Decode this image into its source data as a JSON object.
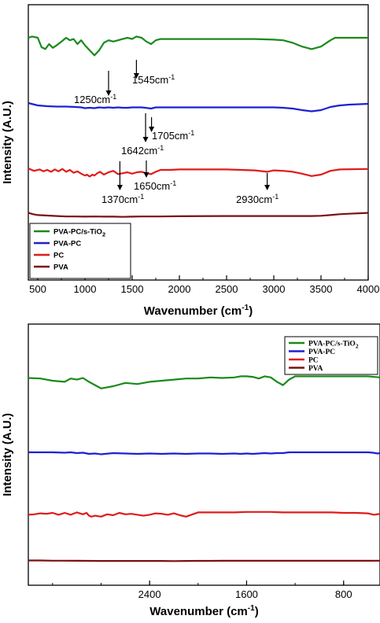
{
  "chart_data": [
    {
      "type": "line",
      "title": "",
      "xlabel": "Wavenumber (cm",
      "xlabel_sup": "-1",
      "xlabel_end": ")",
      "ylabel": "Intensity (A.U.)",
      "xlim": [
        400,
        4000
      ],
      "xticks": [
        500,
        1000,
        1500,
        2000,
        2500,
        3000,
        3500,
        4000
      ],
      "legend_position": "bottom-left",
      "legend": [
        {
          "name": "PVA-PC/s-TiO",
          "sub": "2",
          "color": "#1a8a1a"
        },
        {
          "name": "PVA-PC",
          "sub": "",
          "color": "#1f1fd6"
        },
        {
          "name": "PC",
          "sub": "",
          "color": "#e01b1b"
        },
        {
          "name": "PVA",
          "sub": "",
          "color": "#7a1010"
        }
      ],
      "annotations": [
        {
          "text": "1250cm",
          "sup": "-1",
          "x": 1250
        },
        {
          "text": "1545cm",
          "sup": "-1",
          "x": 1545
        },
        {
          "text": "1705cm",
          "sup": "-1",
          "x": 1705
        },
        {
          "text": "1642cm",
          "sup": "-1",
          "x": 1642
        },
        {
          "text": "1370cm",
          "sup": "-1",
          "x": 1370
        },
        {
          "text": "1650cm",
          "sup": "-1",
          "x": 1650
        },
        {
          "text": "2930cm",
          "sup": "-1",
          "x": 2930
        }
      ],
      "series": [
        {
          "name": "PVA-PC/s-TiO2",
          "color": "#1a8a1a",
          "x": [
            400,
            440,
            500,
            540,
            580,
            620,
            660,
            700,
            760,
            800,
            840,
            880,
            920,
            960,
            1000,
            1050,
            1100,
            1150,
            1200,
            1250,
            1300,
            1350,
            1400,
            1450,
            1500,
            1545,
            1600,
            1650,
            1700,
            1750,
            1800,
            1900,
            2000,
            2200,
            2500,
            2800,
            3000,
            3100,
            3200,
            3300,
            3400,
            3500,
            3600,
            3650,
            3700,
            3800,
            4000
          ],
          "y": [
            0.9,
            0.92,
            0.9,
            0.75,
            0.72,
            0.8,
            0.74,
            0.78,
            0.85,
            0.9,
            0.86,
            0.88,
            0.8,
            0.86,
            0.78,
            0.7,
            0.62,
            0.7,
            0.82,
            0.86,
            0.84,
            0.86,
            0.88,
            0.9,
            0.88,
            0.92,
            0.9,
            0.84,
            0.8,
            0.86,
            0.88,
            0.88,
            0.88,
            0.88,
            0.88,
            0.88,
            0.87,
            0.86,
            0.82,
            0.76,
            0.72,
            0.76,
            0.86,
            0.9,
            0.9,
            0.9,
            0.9
          ]
        },
        {
          "name": "PVA-PC",
          "color": "#1f1fd6",
          "x": [
            400,
            500,
            600,
            700,
            800,
            900,
            960,
            1000,
            1050,
            1100,
            1150,
            1200,
            1250,
            1300,
            1350,
            1400,
            1450,
            1500,
            1600,
            1640,
            1700,
            1750,
            1800,
            1900,
            2000,
            2200,
            2500,
            2800,
            3000,
            3100,
            3200,
            3300,
            3400,
            3500,
            3600,
            3700,
            3800,
            3900,
            4000
          ],
          "y": [
            0.68,
            0.62,
            0.6,
            0.59,
            0.59,
            0.58,
            0.57,
            0.55,
            0.56,
            0.55,
            0.57,
            0.56,
            0.57,
            0.56,
            0.57,
            0.56,
            0.56,
            0.57,
            0.57,
            0.56,
            0.54,
            0.57,
            0.57,
            0.57,
            0.57,
            0.57,
            0.57,
            0.57,
            0.57,
            0.56,
            0.54,
            0.5,
            0.47,
            0.5,
            0.58,
            0.62,
            0.64,
            0.65,
            0.66
          ]
        },
        {
          "name": "PC",
          "color": "#e01b1b",
          "x": [
            400,
            460,
            520,
            560,
            600,
            640,
            680,
            720,
            760,
            800,
            840,
            880,
            920,
            960,
            1000,
            1020,
            1050,
            1080,
            1100,
            1130,
            1160,
            1200,
            1250,
            1300,
            1350,
            1400,
            1450,
            1500,
            1550,
            1600,
            1650,
            1700,
            1750,
            1800,
            1900,
            2000,
            2200,
            2500,
            2800,
            2930,
            3000,
            3100,
            3200,
            3300,
            3400,
            3500,
            3600,
            3700,
            4000
          ],
          "y": [
            0.43,
            0.38,
            0.41,
            0.37,
            0.4,
            0.36,
            0.41,
            0.37,
            0.42,
            0.36,
            0.4,
            0.34,
            0.37,
            0.32,
            0.28,
            0.3,
            0.26,
            0.3,
            0.28,
            0.33,
            0.36,
            0.3,
            0.35,
            0.38,
            0.31,
            0.33,
            0.35,
            0.32,
            0.35,
            0.36,
            0.33,
            0.31,
            0.36,
            0.4,
            0.4,
            0.41,
            0.41,
            0.41,
            0.39,
            0.36,
            0.39,
            0.38,
            0.36,
            0.32,
            0.27,
            0.3,
            0.38,
            0.41,
            0.42
          ]
        },
        {
          "name": "PVA",
          "color": "#7a1010",
          "x": [
            400,
            450,
            500,
            600,
            700,
            800,
            900,
            1000,
            1100,
            1200,
            1300,
            1400,
            1500,
            1600,
            1700,
            1800,
            2000,
            2500,
            3000,
            3200,
            3300,
            3400,
            3500,
            3600,
            3700,
            3800,
            4000
          ],
          "y": [
            0.2,
            0.17,
            0.15,
            0.14,
            0.13,
            0.12,
            0.12,
            0.115,
            0.12,
            0.115,
            0.115,
            0.11,
            0.115,
            0.12,
            0.12,
            0.12,
            0.125,
            0.13,
            0.13,
            0.13,
            0.13,
            0.13,
            0.135,
            0.15,
            0.17,
            0.18,
            0.2
          ]
        }
      ]
    },
    {
      "type": "line",
      "title": "",
      "xlabel": "Wavenumber (cm",
      "xlabel_sup": "-1",
      "xlabel_end": ")",
      "ylabel": "Intensity (A.U.)",
      "xlim": [
        500,
        3400
      ],
      "xticks": [
        800,
        1600,
        2400
      ],
      "x_reversed": true,
      "legend_position": "top-right",
      "legend": [
        {
          "name": "PVA-PC/s-TiO",
          "sub": "2",
          "color": "#1a8a1a"
        },
        {
          "name": "PVA-PC",
          "sub": "",
          "color": "#1f1fd6"
        },
        {
          "name": "PC",
          "sub": "",
          "color": "#e01b1b"
        },
        {
          "name": "PVA",
          "sub": "",
          "color": "#7a1010"
        }
      ],
      "series": [
        {
          "name": "PVA-PC/s-TiO2",
          "color": "#1a8a1a",
          "x": [
            3400,
            3300,
            3200,
            3100,
            3050,
            3000,
            2950,
            2900,
            2850,
            2800,
            2700,
            2600,
            2500,
            2400,
            2300,
            2200,
            2100,
            2000,
            1900,
            1800,
            1700,
            1650,
            1600,
            1550,
            1500,
            1450,
            1400,
            1350,
            1300,
            1250,
            1200,
            1150,
            1100,
            1050,
            1000,
            950,
            900,
            850,
            800,
            700,
            600,
            500
          ],
          "y": [
            0.85,
            0.84,
            0.8,
            0.78,
            0.84,
            0.82,
            0.85,
            0.78,
            0.72,
            0.66,
            0.7,
            0.76,
            0.74,
            0.78,
            0.8,
            0.82,
            0.84,
            0.84,
            0.86,
            0.85,
            0.86,
            0.88,
            0.88,
            0.87,
            0.84,
            0.88,
            0.86,
            0.78,
            0.72,
            0.82,
            0.88,
            0.88,
            0.88,
            0.88,
            0.88,
            0.88,
            0.88,
            0.88,
            0.88,
            0.88,
            0.88,
            0.86
          ]
        },
        {
          "name": "PVA-PC",
          "color": "#1f1fd6",
          "x": [
            3400,
            3300,
            3200,
            3100,
            3050,
            3000,
            2950,
            2900,
            2850,
            2800,
            2700,
            2600,
            2500,
            2400,
            2300,
            2200,
            2100,
            2000,
            1900,
            1800,
            1700,
            1650,
            1600,
            1550,
            1500,
            1450,
            1400,
            1350,
            1300,
            1250,
            1200,
            1100,
            1000,
            900,
            800,
            700,
            600,
            560,
            520,
            500
          ],
          "y": [
            0.5,
            0.5,
            0.5,
            0.49,
            0.5,
            0.48,
            0.49,
            0.46,
            0.47,
            0.45,
            0.48,
            0.47,
            0.46,
            0.47,
            0.46,
            0.47,
            0.46,
            0.47,
            0.47,
            0.46,
            0.47,
            0.46,
            0.47,
            0.46,
            0.47,
            0.48,
            0.47,
            0.48,
            0.48,
            0.5,
            0.5,
            0.5,
            0.5,
            0.5,
            0.5,
            0.5,
            0.5,
            0.49,
            0.47,
            0.48
          ]
        },
        {
          "name": "PC",
          "color": "#e01b1b",
          "x": [
            3400,
            3350,
            3300,
            3250,
            3200,
            3150,
            3100,
            3050,
            3000,
            2950,
            2920,
            2900,
            2880,
            2850,
            2800,
            2750,
            2700,
            2650,
            2600,
            2550,
            2500,
            2450,
            2400,
            2350,
            2300,
            2250,
            2200,
            2150,
            2100,
            2000,
            1900,
            1800,
            1700,
            1600,
            1500,
            1400,
            1300,
            1200,
            1100,
            1000,
            900,
            800,
            700,
            600,
            550,
            500
          ],
          "y": [
            0.26,
            0.27,
            0.29,
            0.28,
            0.3,
            0.26,
            0.3,
            0.26,
            0.31,
            0.27,
            0.3,
            0.24,
            0.22,
            0.24,
            0.22,
            0.27,
            0.25,
            0.3,
            0.27,
            0.28,
            0.26,
            0.24,
            0.26,
            0.29,
            0.28,
            0.26,
            0.29,
            0.25,
            0.22,
            0.31,
            0.31,
            0.31,
            0.31,
            0.32,
            0.32,
            0.32,
            0.31,
            0.31,
            0.31,
            0.31,
            0.31,
            0.3,
            0.3,
            0.29,
            0.26,
            0.28
          ]
        },
        {
          "name": "PVA",
          "color": "#7a1010",
          "x": [
            3400,
            3300,
            3200,
            3100,
            3000,
            2900,
            2800,
            2700,
            2600,
            2500,
            2400,
            2300,
            2200,
            2100,
            2000,
            1900,
            1800,
            1700,
            1600,
            1500,
            1400,
            1300,
            1200,
            1100,
            1000,
            900,
            800,
            700,
            600,
            500
          ],
          "y": [
            0.1,
            0.1,
            0.09,
            0.09,
            0.085,
            0.08,
            0.075,
            0.075,
            0.075,
            0.075,
            0.075,
            0.075,
            0.07,
            0.075,
            0.08,
            0.08,
            0.085,
            0.085,
            0.085,
            0.085,
            0.085,
            0.085,
            0.085,
            0.085,
            0.085,
            0.085,
            0.085,
            0.085,
            0.085,
            0.09
          ]
        }
      ]
    }
  ]
}
